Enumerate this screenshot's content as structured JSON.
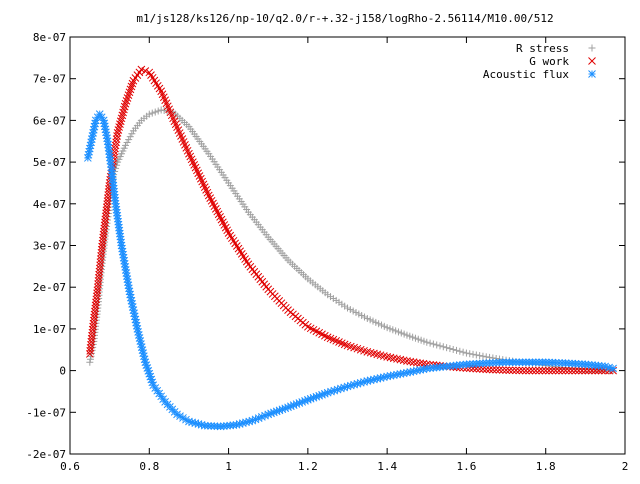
{
  "chart_data": {
    "type": "scatter",
    "title": "m1/js128/ks126/np-10/q2.0/r-+.32-j158/logRho-2.56114/M10.00/512",
    "xlabel": "",
    "ylabel": "",
    "xlim": [
      0.6,
      2.0
    ],
    "ylim": [
      -2e-07,
      8e-07
    ],
    "x_ticks": [
      0.6,
      0.8,
      1.0,
      1.2,
      1.4,
      1.6,
      1.8,
      2.0
    ],
    "x_tick_labels": [
      "0.6",
      "0.8",
      "1",
      "1.2",
      "1.4",
      "1.6",
      "1.8",
      "2"
    ],
    "y_ticks": [
      -2e-07,
      -1e-07,
      0,
      1e-07,
      2e-07,
      3e-07,
      4e-07,
      5e-07,
      6e-07,
      7e-07,
      8e-07
    ],
    "y_tick_labels": [
      "-2e-07",
      "-1e-07",
      "0",
      "1e-07",
      "2e-07",
      "3e-07",
      "4e-07",
      "5e-07",
      "6e-07",
      "7e-07",
      "8e-07"
    ],
    "grid": false,
    "legend_position": "top-right",
    "series": [
      {
        "name": "R stress",
        "marker": "plus",
        "color": "#a0a0a0",
        "points": [
          [
            0.65,
            2e-08
          ],
          [
            0.66,
            7e-08
          ],
          [
            0.67,
            1.5e-07
          ],
          [
            0.68,
            2.5e-07
          ],
          [
            0.69,
            3.3e-07
          ],
          [
            0.7,
            4e-07
          ],
          [
            0.71,
            4.7e-07
          ],
          [
            0.72,
            5e-07
          ],
          [
            0.74,
            5.4e-07
          ],
          [
            0.76,
            5.75e-07
          ],
          [
            0.78,
            6e-07
          ],
          [
            0.8,
            6.15e-07
          ],
          [
            0.83,
            6.25e-07
          ],
          [
            0.86,
            6.2e-07
          ],
          [
            0.9,
            5.85e-07
          ],
          [
            0.95,
            5.2e-07
          ],
          [
            1.0,
            4.5e-07
          ],
          [
            1.05,
            3.8e-07
          ],
          [
            1.1,
            3.2e-07
          ],
          [
            1.15,
            2.65e-07
          ],
          [
            1.2,
            2.2e-07
          ],
          [
            1.25,
            1.82e-07
          ],
          [
            1.3,
            1.5e-07
          ],
          [
            1.35,
            1.25e-07
          ],
          [
            1.4,
            1.03e-07
          ],
          [
            1.45,
            8.5e-08
          ],
          [
            1.5,
            6.8e-08
          ],
          [
            1.55,
            5.5e-08
          ],
          [
            1.6,
            4.2e-08
          ],
          [
            1.65,
            3.3e-08
          ],
          [
            1.7,
            2.5e-08
          ],
          [
            1.75,
            1.8e-08
          ],
          [
            1.8,
            1.2e-08
          ],
          [
            1.85,
            7e-09
          ],
          [
            1.9,
            3e-09
          ],
          [
            1.95,
            0.0
          ],
          [
            1.97,
            0.0
          ]
        ]
      },
      {
        "name": "G work",
        "marker": "cross",
        "color": "#e00000",
        "points": [
          [
            0.65,
            4e-08
          ],
          [
            0.66,
            1.2e-07
          ],
          [
            0.67,
            2e-07
          ],
          [
            0.68,
            2.9e-07
          ],
          [
            0.69,
            3.7e-07
          ],
          [
            0.7,
            4.5e-07
          ],
          [
            0.71,
            5.1e-07
          ],
          [
            0.72,
            5.7e-07
          ],
          [
            0.74,
            6.4e-07
          ],
          [
            0.76,
            6.95e-07
          ],
          [
            0.78,
            7.22e-07
          ],
          [
            0.8,
            7.15e-07
          ],
          [
            0.83,
            6.7e-07
          ],
          [
            0.86,
            6.05e-07
          ],
          [
            0.9,
            5.2e-07
          ],
          [
            0.95,
            4.2e-07
          ],
          [
            1.0,
            3.3e-07
          ],
          [
            1.05,
            2.55e-07
          ],
          [
            1.1,
            1.95e-07
          ],
          [
            1.15,
            1.45e-07
          ],
          [
            1.2,
            1.05e-07
          ],
          [
            1.25,
            8e-08
          ],
          [
            1.3,
            6e-08
          ],
          [
            1.35,
            4.5e-08
          ],
          [
            1.4,
            3.3e-08
          ],
          [
            1.45,
            2.3e-08
          ],
          [
            1.5,
            1.5e-08
          ],
          [
            1.55,
            1e-08
          ],
          [
            1.6,
            6e-09
          ],
          [
            1.65,
            3e-09
          ],
          [
            1.7,
            1e-09
          ],
          [
            1.75,
            0.0
          ],
          [
            1.8,
            0.0
          ],
          [
            1.85,
            0.0
          ],
          [
            1.9,
            0.0
          ],
          [
            1.95,
            0.0
          ],
          [
            1.97,
            0.0
          ]
        ]
      },
      {
        "name": "Acoustic flux",
        "marker": "star",
        "color": "#1e90ff",
        "points": [
          [
            0.645,
            5.1e-07
          ],
          [
            0.655,
            5.55e-07
          ],
          [
            0.665,
            6e-07
          ],
          [
            0.675,
            6.15e-07
          ],
          [
            0.685,
            6e-07
          ],
          [
            0.695,
            5.5e-07
          ],
          [
            0.705,
            4.8e-07
          ],
          [
            0.715,
            4e-07
          ],
          [
            0.73,
            3e-07
          ],
          [
            0.75,
            1.9e-07
          ],
          [
            0.77,
            1e-07
          ],
          [
            0.79,
            2e-08
          ],
          [
            0.81,
            -3.5e-08
          ],
          [
            0.84,
            -7.5e-08
          ],
          [
            0.87,
            -1.05e-07
          ],
          [
            0.9,
            -1.22e-07
          ],
          [
            0.94,
            -1.32e-07
          ],
          [
            0.98,
            -1.34e-07
          ],
          [
            1.02,
            -1.3e-07
          ],
          [
            1.06,
            -1.2e-07
          ],
          [
            1.1,
            -1.05e-07
          ],
          [
            1.15,
            -8.8e-08
          ],
          [
            1.2,
            -7e-08
          ],
          [
            1.25,
            -5.3e-08
          ],
          [
            1.3,
            -3.8e-08
          ],
          [
            1.35,
            -2.5e-08
          ],
          [
            1.4,
            -1.4e-08
          ],
          [
            1.45,
            -5e-09
          ],
          [
            1.5,
            5e-09
          ],
          [
            1.55,
            1e-08
          ],
          [
            1.6,
            1.5e-08
          ],
          [
            1.65,
            1.8e-08
          ],
          [
            1.7,
            2e-08
          ],
          [
            1.75,
            2e-08
          ],
          [
            1.8,
            2e-08
          ],
          [
            1.85,
            1.8e-08
          ],
          [
            1.9,
            1.5e-08
          ],
          [
            1.95,
            1e-08
          ],
          [
            1.97,
            5e-09
          ]
        ]
      }
    ]
  }
}
